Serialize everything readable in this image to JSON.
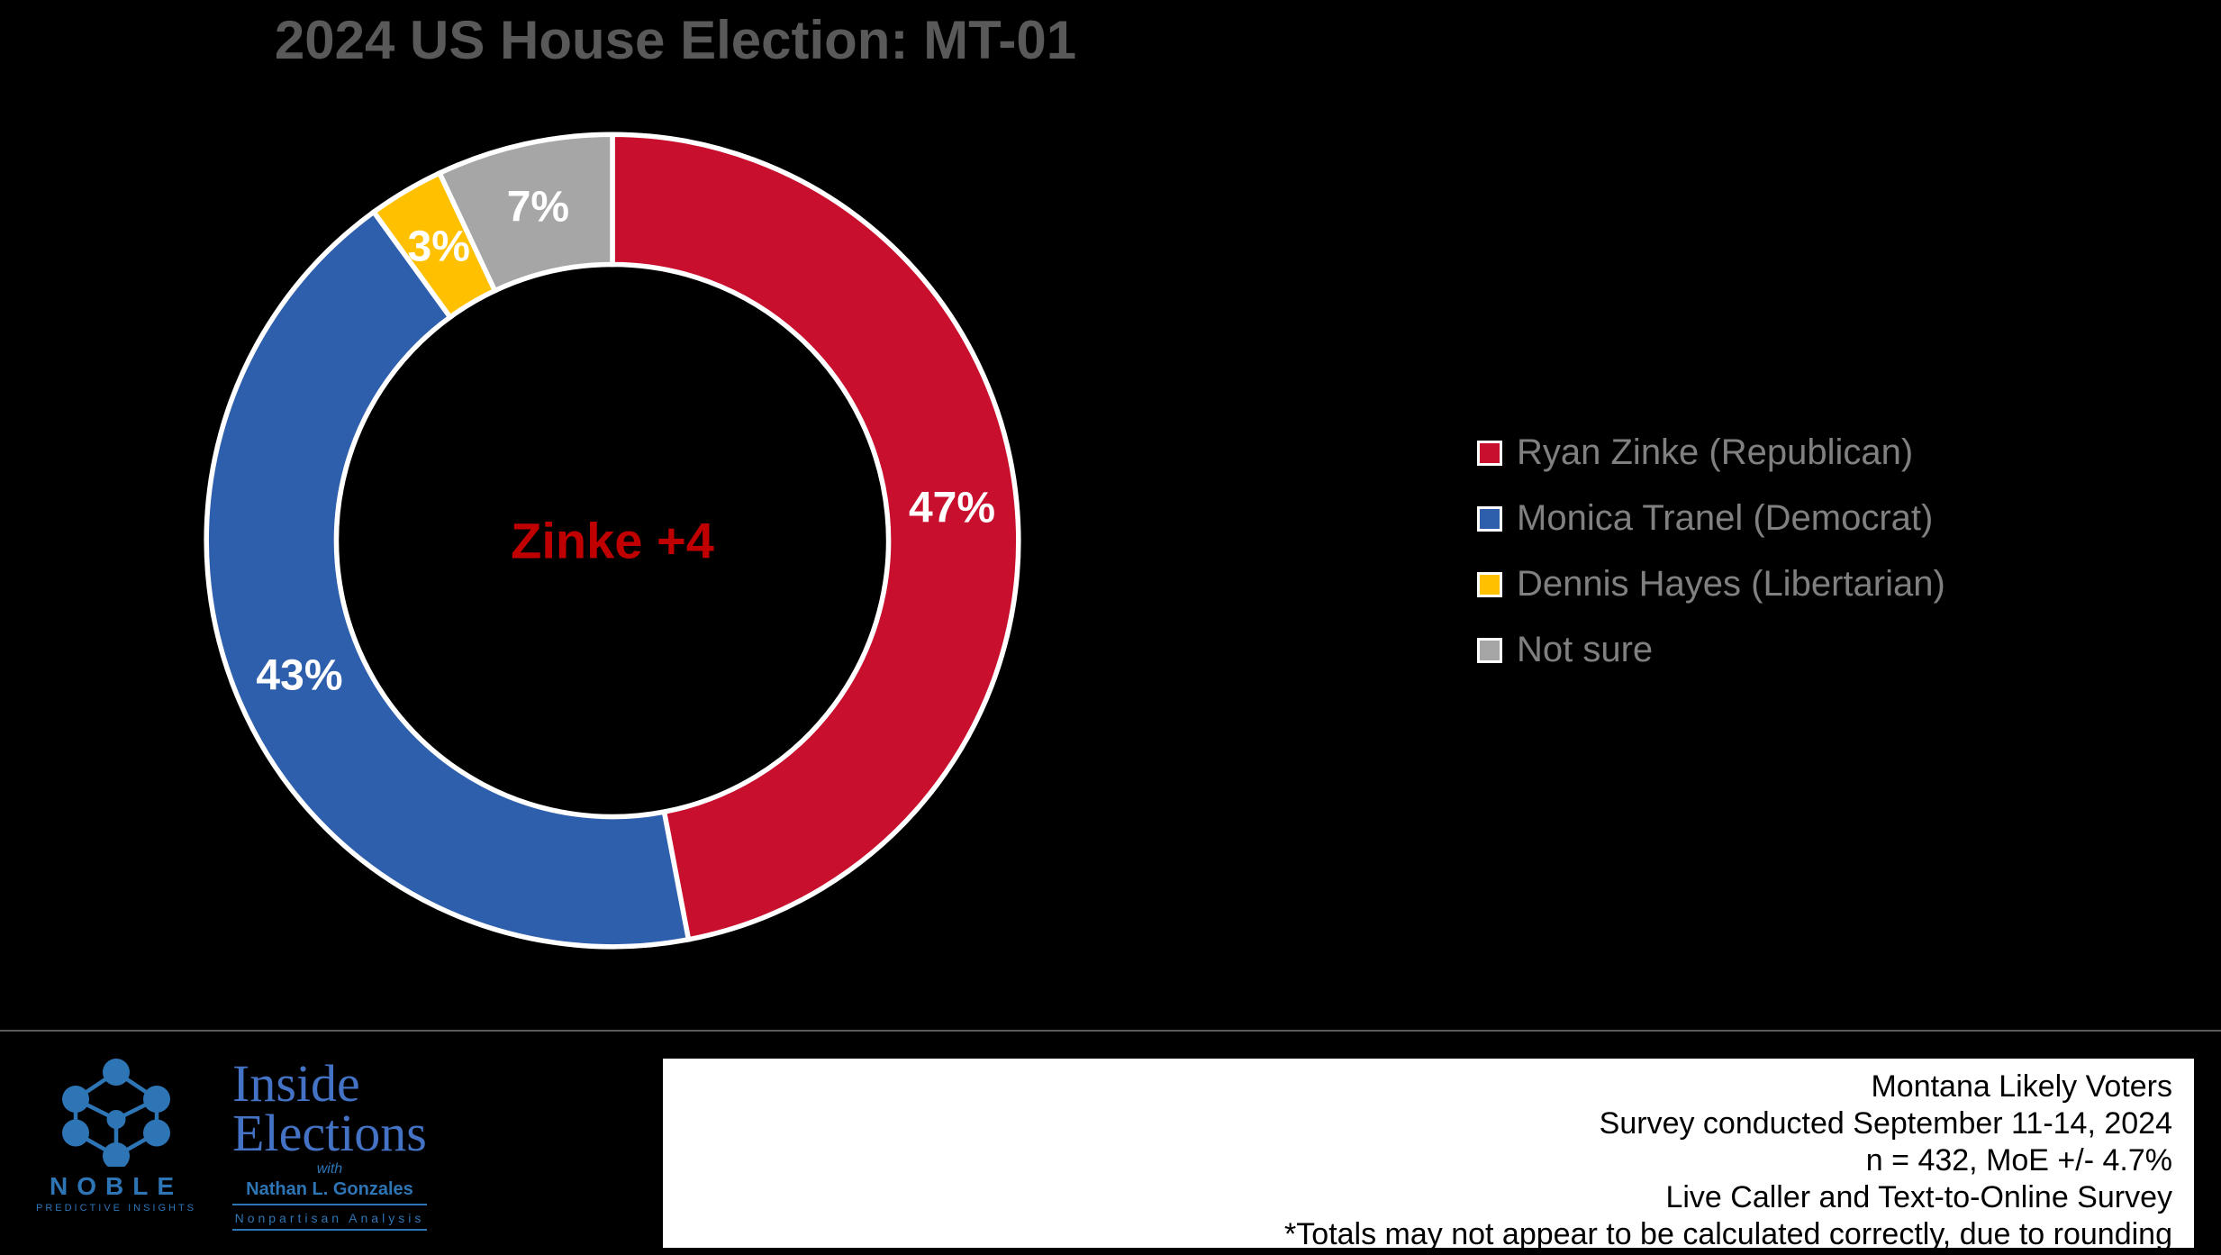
{
  "chart": {
    "type": "donut",
    "title": "2024 US House Election: MT-01",
    "title_color": "#595959",
    "title_fontsize": 60,
    "background_color": "#000000",
    "inner_radius_ratio": 0.68,
    "stroke_color": "#ffffff",
    "stroke_width": 6,
    "center_label": "Zinke +4",
    "center_label_color": "#c00000",
    "center_label_fontsize": 56,
    "label_color": "#ffffff",
    "label_fontsize": 48,
    "legend_text_color": "#808080",
    "legend_fontsize": 40,
    "legend_swatch_border": "#ffffff",
    "slices": [
      {
        "label": "Ryan Zinke (Republican)",
        "value": 47,
        "display": "47%",
        "color": "#c8102e"
      },
      {
        "label": "Monica Tranel (Democrat)",
        "value": 43,
        "display": "43%",
        "color": "#2e5fac"
      },
      {
        "label": "Dennis Hayes (Libertarian)",
        "value": 3,
        "display": "3%",
        "color": "#ffc000"
      },
      {
        "label": "Not sure",
        "value": 7,
        "display": "7%",
        "color": "#a6a6a6"
      }
    ]
  },
  "branding": {
    "noble": {
      "name": "NOBLE",
      "sub": "PREDICTIVE INSIGHTS",
      "color": "#2e75b6"
    },
    "inside_elections": {
      "line1": "Inside",
      "line2": "Elections",
      "with": "with",
      "name": "Nathan L. Gonzales",
      "tag": "Nonpartisan Analysis",
      "color": "#4472c4"
    }
  },
  "info": {
    "background": "#ffffff",
    "text_color": "#000000",
    "fontsize": 34,
    "lines": [
      "Montana Likely Voters",
      "Survey conducted September 11-14, 2024",
      "n = 432, MoE +/- 4.7%",
      "Live Caller and Text-to-Online Survey",
      "*Totals may not appear to be calculated correctly, due to rounding"
    ]
  }
}
